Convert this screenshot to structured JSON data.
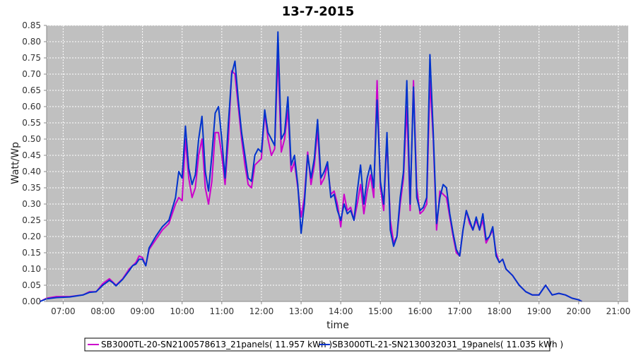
{
  "chart_data": {
    "type": "line",
    "title": "13-7-2015",
    "xlabel": "time",
    "ylabel": "Watt/Wp",
    "xlim": [
      "06:35",
      "21:15"
    ],
    "ylim": [
      0,
      0.85
    ],
    "yticks": [
      0.0,
      0.05,
      0.1,
      0.15,
      0.2,
      0.25,
      0.3,
      0.35,
      0.4,
      0.45,
      0.5,
      0.55,
      0.6,
      0.65,
      0.7,
      0.75,
      0.8,
      0.85
    ],
    "yticklabels": [
      "0.00",
      "0.05",
      "0.10",
      "0.15",
      "0.20",
      "0.25",
      "0.30",
      "0.35",
      "0.40",
      "0.45",
      "0.50",
      "0.55",
      "0.60",
      "0.65",
      "0.70",
      "0.75",
      "0.80",
      "0.85"
    ],
    "xticks": [
      "07:00",
      "08:00",
      "09:00",
      "10:00",
      "11:00",
      "12:00",
      "13:00",
      "14:00",
      "15:00",
      "16:00",
      "17:00",
      "18:00",
      "19:00",
      "20:00",
      "21:00"
    ],
    "grid": true,
    "legend_position": "bottom",
    "plot_background": "#c0c0c0",
    "grid_color": "#ffffff",
    "series": [
      {
        "name": "SB3000TL-20-SN2100578613_21panels( 11.957 kWh )",
        "color": "#cc00cc",
        "points": [
          [
            "06:25",
            0.0
          ],
          [
            "06:35",
            0.01
          ],
          [
            "06:50",
            0.015
          ],
          [
            "07:10",
            0.015
          ],
          [
            "07:30",
            0.02
          ],
          [
            "07:40",
            0.03
          ],
          [
            "07:50",
            0.03
          ],
          [
            "08:00",
            0.055
          ],
          [
            "08:10",
            0.07
          ],
          [
            "08:15",
            0.06
          ],
          [
            "08:20",
            0.05
          ],
          [
            "08:30",
            0.07
          ],
          [
            "08:40",
            0.1
          ],
          [
            "08:45",
            0.11
          ],
          [
            "08:50",
            0.12
          ],
          [
            "08:55",
            0.14
          ],
          [
            "09:00",
            0.135
          ],
          [
            "09:05",
            0.11
          ],
          [
            "09:10",
            0.16
          ],
          [
            "09:20",
            0.19
          ],
          [
            "09:30",
            0.22
          ],
          [
            "09:40",
            0.24
          ],
          [
            "09:50",
            0.3
          ],
          [
            "09:55",
            0.32
          ],
          [
            "10:00",
            0.31
          ],
          [
            "10:05",
            0.5
          ],
          [
            "10:10",
            0.38
          ],
          [
            "10:15",
            0.32
          ],
          [
            "10:20",
            0.35
          ],
          [
            "10:25",
            0.45
          ],
          [
            "10:30",
            0.5
          ],
          [
            "10:35",
            0.35
          ],
          [
            "10:40",
            0.3
          ],
          [
            "10:45",
            0.37
          ],
          [
            "10:50",
            0.52
          ],
          [
            "10:55",
            0.52
          ],
          [
            "11:00",
            0.45
          ],
          [
            "11:05",
            0.36
          ],
          [
            "11:10",
            0.5
          ],
          [
            "11:15",
            0.71
          ],
          [
            "11:20",
            0.7
          ],
          [
            "11:25",
            0.6
          ],
          [
            "11:30",
            0.5
          ],
          [
            "11:35",
            0.42
          ],
          [
            "11:40",
            0.36
          ],
          [
            "11:45",
            0.35
          ],
          [
            "11:50",
            0.42
          ],
          [
            "11:55",
            0.43
          ],
          [
            "12:00",
            0.44
          ],
          [
            "12:05",
            0.58
          ],
          [
            "12:10",
            0.5
          ],
          [
            "12:15",
            0.45
          ],
          [
            "12:20",
            0.47
          ],
          [
            "12:25",
            0.76
          ],
          [
            "12:30",
            0.46
          ],
          [
            "12:35",
            0.5
          ],
          [
            "12:40",
            0.59
          ],
          [
            "12:45",
            0.4
          ],
          [
            "12:50",
            0.43
          ],
          [
            "12:55",
            0.35
          ],
          [
            "13:00",
            0.26
          ],
          [
            "13:05",
            0.32
          ],
          [
            "13:10",
            0.46
          ],
          [
            "13:15",
            0.36
          ],
          [
            "13:20",
            0.42
          ],
          [
            "13:25",
            0.53
          ],
          [
            "13:30",
            0.36
          ],
          [
            "13:35",
            0.38
          ],
          [
            "13:40",
            0.42
          ],
          [
            "13:45",
            0.33
          ],
          [
            "13:50",
            0.34
          ],
          [
            "13:55",
            0.3
          ],
          [
            "14:00",
            0.23
          ],
          [
            "14:05",
            0.33
          ],
          [
            "14:10",
            0.28
          ],
          [
            "14:15",
            0.29
          ],
          [
            "14:20",
            0.25
          ],
          [
            "14:25",
            0.3
          ],
          [
            "14:30",
            0.36
          ],
          [
            "14:35",
            0.27
          ],
          [
            "14:40",
            0.34
          ],
          [
            "14:45",
            0.39
          ],
          [
            "14:50",
            0.32
          ],
          [
            "14:55",
            0.68
          ],
          [
            "15:00",
            0.35
          ],
          [
            "15:05",
            0.28
          ],
          [
            "15:10",
            0.5
          ],
          [
            "15:15",
            0.25
          ],
          [
            "15:20",
            0.18
          ],
          [
            "15:25",
            0.2
          ],
          [
            "15:30",
            0.3
          ],
          [
            "15:35",
            0.38
          ],
          [
            "15:40",
            0.6
          ],
          [
            "15:45",
            0.28
          ],
          [
            "15:50",
            0.68
          ],
          [
            "15:55",
            0.35
          ],
          [
            "16:00",
            0.27
          ],
          [
            "16:05",
            0.28
          ],
          [
            "16:10",
            0.3
          ],
          [
            "16:15",
            0.68
          ],
          [
            "16:20",
            0.5
          ],
          [
            "16:25",
            0.22
          ],
          [
            "16:30",
            0.34
          ],
          [
            "16:35",
            0.33
          ],
          [
            "16:40",
            0.32
          ],
          [
            "16:45",
            0.26
          ],
          [
            "16:50",
            0.2
          ],
          [
            "16:55",
            0.15
          ],
          [
            "17:00",
            0.14
          ],
          [
            "17:05",
            0.22
          ],
          [
            "17:10",
            0.28
          ],
          [
            "17:15",
            0.24
          ],
          [
            "17:20",
            0.22
          ],
          [
            "17:25",
            0.25
          ],
          [
            "17:30",
            0.22
          ],
          [
            "17:35",
            0.25
          ],
          [
            "17:40",
            0.18
          ],
          [
            "17:45",
            0.2
          ],
          [
            "17:50",
            0.22
          ],
          [
            "17:55",
            0.15
          ],
          [
            "18:00",
            0.12
          ],
          [
            "18:05",
            0.13
          ],
          [
            "18:10",
            0.1
          ],
          [
            "18:20",
            0.08
          ],
          [
            "18:30",
            0.05
          ],
          [
            "18:40",
            0.03
          ],
          [
            "18:50",
            0.02
          ],
          [
            "19:00",
            0.02
          ],
          [
            "19:10",
            0.05
          ],
          [
            "19:20",
            0.02
          ],
          [
            "19:30",
            0.025
          ],
          [
            "19:40",
            0.02
          ],
          [
            "19:50",
            0.01
          ],
          [
            "20:00",
            0.005
          ],
          [
            "20:05",
            0.0
          ]
        ]
      },
      {
        "name": "SB3000TL-21-SN2130032031_19panels( 11.035 kWh )",
        "color": "#0033cc",
        "points": [
          [
            "06:25",
            0.0
          ],
          [
            "06:35",
            0.008
          ],
          [
            "06:50",
            0.012
          ],
          [
            "07:10",
            0.014
          ],
          [
            "07:30",
            0.02
          ],
          [
            "07:40",
            0.028
          ],
          [
            "07:50",
            0.03
          ],
          [
            "08:00",
            0.05
          ],
          [
            "08:10",
            0.065
          ],
          [
            "08:15",
            0.058
          ],
          [
            "08:20",
            0.048
          ],
          [
            "08:30",
            0.068
          ],
          [
            "08:40",
            0.095
          ],
          [
            "08:45",
            0.11
          ],
          [
            "08:50",
            0.115
          ],
          [
            "08:55",
            0.13
          ],
          [
            "09:00",
            0.13
          ],
          [
            "09:05",
            0.11
          ],
          [
            "09:10",
            0.165
          ],
          [
            "09:20",
            0.2
          ],
          [
            "09:30",
            0.23
          ],
          [
            "09:40",
            0.25
          ],
          [
            "09:50",
            0.32
          ],
          [
            "09:55",
            0.4
          ],
          [
            "10:00",
            0.38
          ],
          [
            "10:05",
            0.54
          ],
          [
            "10:10",
            0.41
          ],
          [
            "10:15",
            0.36
          ],
          [
            "10:20",
            0.39
          ],
          [
            "10:25",
            0.5
          ],
          [
            "10:30",
            0.57
          ],
          [
            "10:35",
            0.4
          ],
          [
            "10:40",
            0.34
          ],
          [
            "10:45",
            0.45
          ],
          [
            "10:50",
            0.58
          ],
          [
            "10:55",
            0.6
          ],
          [
            "11:00",
            0.5
          ],
          [
            "11:05",
            0.38
          ],
          [
            "11:10",
            0.55
          ],
          [
            "11:15",
            0.7
          ],
          [
            "11:20",
            0.74
          ],
          [
            "11:25",
            0.62
          ],
          [
            "11:30",
            0.52
          ],
          [
            "11:35",
            0.45
          ],
          [
            "11:40",
            0.38
          ],
          [
            "11:45",
            0.37
          ],
          [
            "11:50",
            0.45
          ],
          [
            "11:55",
            0.47
          ],
          [
            "12:00",
            0.46
          ],
          [
            "12:05",
            0.59
          ],
          [
            "12:10",
            0.52
          ],
          [
            "12:15",
            0.5
          ],
          [
            "12:20",
            0.48
          ],
          [
            "12:25",
            0.83
          ],
          [
            "12:30",
            0.5
          ],
          [
            "12:35",
            0.52
          ],
          [
            "12:40",
            0.63
          ],
          [
            "12:45",
            0.42
          ],
          [
            "12:50",
            0.45
          ],
          [
            "12:55",
            0.36
          ],
          [
            "13:00",
            0.21
          ],
          [
            "13:05",
            0.3
          ],
          [
            "13:10",
            0.45
          ],
          [
            "13:15",
            0.38
          ],
          [
            "13:20",
            0.44
          ],
          [
            "13:25",
            0.56
          ],
          [
            "13:30",
            0.38
          ],
          [
            "13:35",
            0.4
          ],
          [
            "13:40",
            0.43
          ],
          [
            "13:45",
            0.32
          ],
          [
            "13:50",
            0.33
          ],
          [
            "13:55",
            0.28
          ],
          [
            "14:00",
            0.25
          ],
          [
            "14:05",
            0.3
          ],
          [
            "14:10",
            0.27
          ],
          [
            "14:15",
            0.28
          ],
          [
            "14:20",
            0.25
          ],
          [
            "14:25",
            0.34
          ],
          [
            "14:30",
            0.42
          ],
          [
            "14:35",
            0.3
          ],
          [
            "14:40",
            0.38
          ],
          [
            "14:45",
            0.42
          ],
          [
            "14:50",
            0.35
          ],
          [
            "14:55",
            0.62
          ],
          [
            "15:00",
            0.37
          ],
          [
            "15:05",
            0.3
          ],
          [
            "15:10",
            0.52
          ],
          [
            "15:15",
            0.22
          ],
          [
            "15:20",
            0.17
          ],
          [
            "15:25",
            0.2
          ],
          [
            "15:30",
            0.32
          ],
          [
            "15:35",
            0.4
          ],
          [
            "15:40",
            0.68
          ],
          [
            "15:45",
            0.3
          ],
          [
            "15:50",
            0.66
          ],
          [
            "15:55",
            0.32
          ],
          [
            "16:00",
            0.28
          ],
          [
            "16:05",
            0.29
          ],
          [
            "16:10",
            0.32
          ],
          [
            "16:15",
            0.76
          ],
          [
            "16:20",
            0.52
          ],
          [
            "16:25",
            0.24
          ],
          [
            "16:30",
            0.32
          ],
          [
            "16:35",
            0.36
          ],
          [
            "16:40",
            0.35
          ],
          [
            "16:45",
            0.27
          ],
          [
            "16:50",
            0.21
          ],
          [
            "16:55",
            0.16
          ],
          [
            "17:00",
            0.14
          ],
          [
            "17:05",
            0.22
          ],
          [
            "17:10",
            0.28
          ],
          [
            "17:15",
            0.25
          ],
          [
            "17:20",
            0.22
          ],
          [
            "17:25",
            0.26
          ],
          [
            "17:30",
            0.22
          ],
          [
            "17:35",
            0.27
          ],
          [
            "17:40",
            0.19
          ],
          [
            "17:45",
            0.2
          ],
          [
            "17:50",
            0.23
          ],
          [
            "17:55",
            0.14
          ],
          [
            "18:00",
            0.12
          ],
          [
            "18:05",
            0.13
          ],
          [
            "18:10",
            0.1
          ],
          [
            "18:20",
            0.08
          ],
          [
            "18:30",
            0.05
          ],
          [
            "18:40",
            0.03
          ],
          [
            "18:50",
            0.02
          ],
          [
            "19:00",
            0.02
          ],
          [
            "19:10",
            0.05
          ],
          [
            "19:20",
            0.02
          ],
          [
            "19:30",
            0.025
          ],
          [
            "19:40",
            0.02
          ],
          [
            "19:50",
            0.01
          ],
          [
            "20:00",
            0.005
          ],
          [
            "20:05",
            0.0
          ]
        ]
      }
    ]
  }
}
